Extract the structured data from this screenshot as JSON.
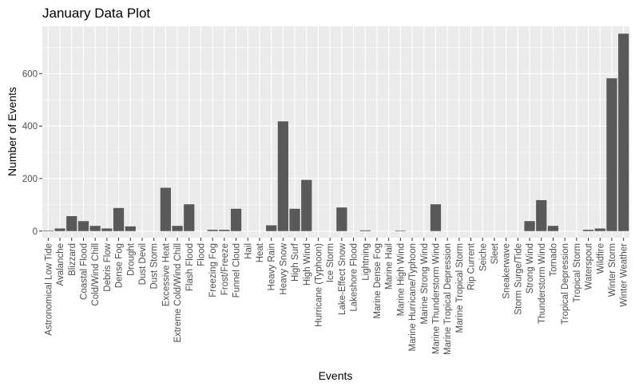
{
  "chart_data": {
    "type": "bar",
    "title": "January Data Plot",
    "xlabel": "Events",
    "ylabel": "Number of Events",
    "ylim": [
      -25,
      780
    ],
    "yticks": [
      0,
      200,
      400,
      600
    ],
    "grid": true,
    "bar_color": "#595959",
    "panel_color": "#ebebeb",
    "categories": [
      "Astronomical Low Tide",
      "Avalanche",
      "Blizzard",
      "Coastal Flood",
      "Cold/Wind Chill",
      "Debris Flow",
      "Dense Fog",
      "Drought",
      "Dust Devil",
      "Dust Storm",
      "Excessive Heat",
      "Extreme Cold/Wind Chill",
      "Flash Flood",
      "Flood",
      "Freezing Fog",
      "Frost/Freeze",
      "Funnel Cloud",
      "Hail",
      "Heat",
      "Heavy Rain",
      "Heavy Snow",
      "High Surf",
      "High Wind",
      "Hurricane (Typhoon)",
      "Ice Storm",
      "Lake-Effect Snow",
      "Lakeshore Flood",
      "Lightning",
      "Marine Dense Fog",
      "Marine Hail",
      "Marine High Wind",
      "Marine Hurricane/Typhoon",
      "Marine Strong Wind",
      "Marine Thunderstorm Wind",
      "Marine Tropical Depression",
      "Marine Tropical Storm",
      "Rip Current",
      "Seiche",
      "Sleet",
      "Sneakerwave",
      "Storm Surge/Tide",
      "Strong Wind",
      "Thunderstorm Wind",
      "Tornado",
      "Tropical Depression",
      "Tropical Storm",
      "Waterspout",
      "Wildfire",
      "Winter Storm",
      "Winter Weather"
    ],
    "values": [
      2,
      10,
      57,
      38,
      20,
      10,
      88,
      18,
      0,
      0,
      165,
      20,
      102,
      0,
      5,
      5,
      85,
      0,
      0,
      22,
      418,
      85,
      195,
      0,
      0,
      90,
      0,
      3,
      0,
      0,
      2,
      0,
      0,
      102,
      0,
      0,
      0,
      0,
      0,
      0,
      0,
      38,
      118,
      20,
      0,
      0,
      5,
      10,
      582,
      752
    ]
  }
}
